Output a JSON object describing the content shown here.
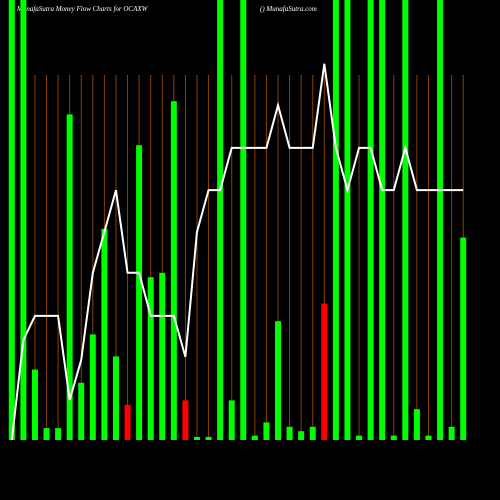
{
  "chart_data": {
    "type": "bar",
    "title": "MunafaSutra  Money Flow  Charts for OCAXW",
    "subtitle": "() MunafaSutra.com",
    "categories": [
      null,
      null,
      null,
      null,
      null,
      null,
      null,
      null,
      null,
      null,
      null,
      null,
      null,
      null,
      null,
      null,
      null,
      null,
      null,
      null,
      null,
      null,
      null,
      null,
      null,
      null,
      null,
      null,
      null,
      null,
      null,
      null,
      null,
      null,
      null,
      null,
      null,
      null,
      null,
      null
    ],
    "ylim": [
      0,
      100
    ],
    "grid": true,
    "series": [
      {
        "type": "bar",
        "values": [
          100,
          100,
          16,
          2.7,
          2.7,
          74,
          13,
          24,
          48,
          19,
          8,
          67,
          37,
          38,
          77,
          9,
          0.7,
          0.7,
          100,
          9,
          100,
          1,
          4,
          27,
          3,
          2,
          3,
          31,
          100,
          100,
          1,
          100,
          100,
          1,
          100,
          7,
          1,
          100,
          3,
          46
        ],
        "colors": [
          "#00ff00",
          "#00ff00",
          "#00ff00",
          "#00ff00",
          "#00ff00",
          "#00ff00",
          "#00ff00",
          "#00ff00",
          "#00ff00",
          "#00ff00",
          "#ff0000",
          "#00ff00",
          "#00ff00",
          "#00ff00",
          "#00ff00",
          "#ff0000",
          "#00ff00",
          "#00ff00",
          "#00ff00",
          "#00ff00",
          "#00ff00",
          "#00ff00",
          "#00ff00",
          "#00ff00",
          "#00ff00",
          "#00ff00",
          "#00ff00",
          "#ff0000",
          "#00ff00",
          "#00ff00",
          "#00ff00",
          "#00ff00",
          "#00ff00",
          "#00ff00",
          "#00ff00",
          "#00ff00",
          "#00ff00",
          "#00ff00",
          "#00ff00",
          "#00ff00"
        ]
      },
      {
        "type": "line",
        "color": "#ffffff",
        "values": [
          0,
          22.7,
          28.2,
          28.2,
          28.2,
          9.1,
          18.2,
          38,
          47.3,
          56.8,
          38,
          38,
          28.2,
          28.2,
          28.2,
          18.9,
          47.3,
          56.8,
          56.8,
          66.4,
          66.4,
          66.4,
          66.4,
          76.1,
          66.4,
          66.4,
          66.4,
          85.5,
          66.4,
          56.8,
          66.4,
          66.4,
          56.8,
          56.8,
          66.4,
          56.8,
          56.8,
          56.8,
          56.8,
          56.8
        ]
      }
    ]
  }
}
